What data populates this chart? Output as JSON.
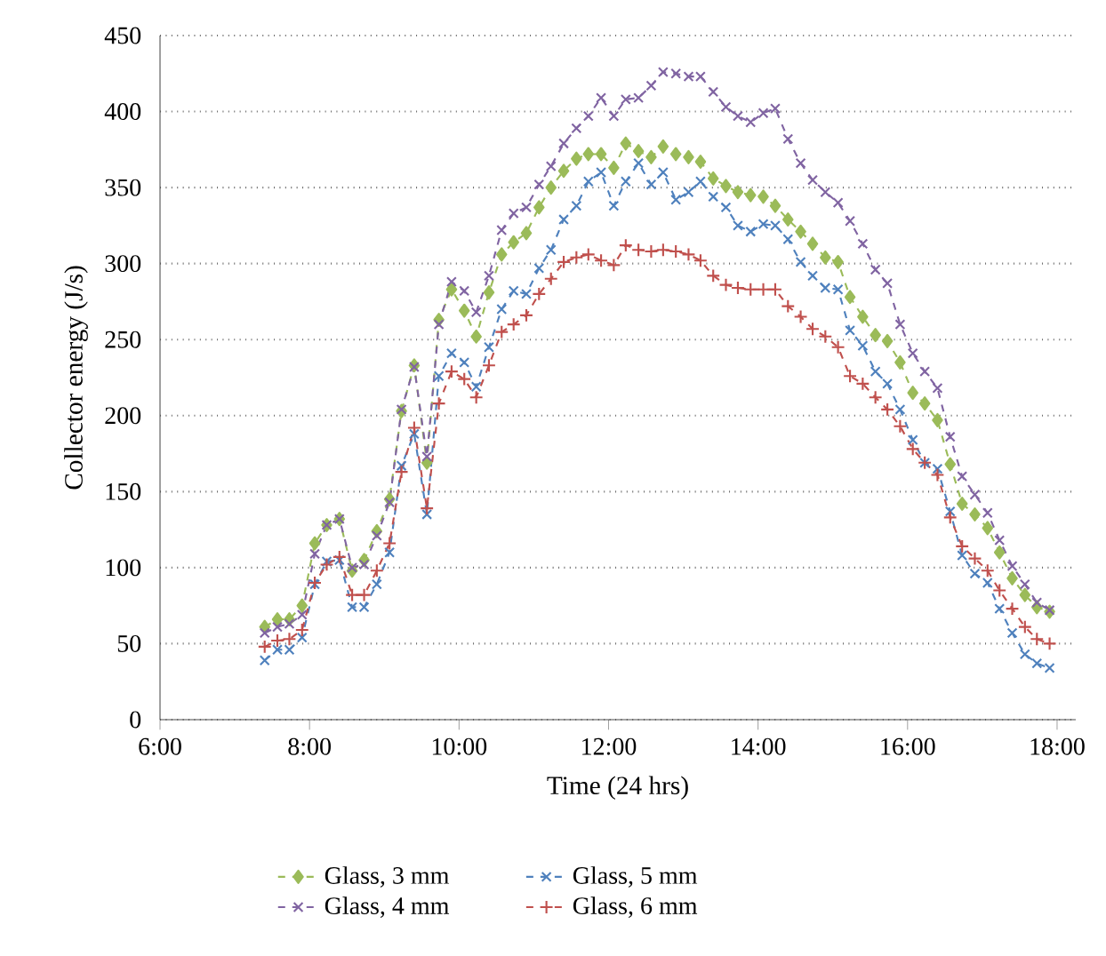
{
  "chart_data": {
    "type": "line",
    "xlabel": "Time (24 hrs)",
    "ylabel": "Collector energy (J/s)",
    "x": [
      7.4,
      7.57,
      7.73,
      7.9,
      8.07,
      8.23,
      8.4,
      8.57,
      8.73,
      8.9,
      9.07,
      9.23,
      9.4,
      9.57,
      9.73,
      9.9,
      10.07,
      10.23,
      10.4,
      10.57,
      10.73,
      10.9,
      11.07,
      11.23,
      11.4,
      11.57,
      11.73,
      11.9,
      12.07,
      12.23,
      12.4,
      12.57,
      12.73,
      12.9,
      13.07,
      13.23,
      13.4,
      13.57,
      13.73,
      13.9,
      14.07,
      14.23,
      14.4,
      14.57,
      14.73,
      14.9,
      15.07,
      15.23,
      15.4,
      15.57,
      15.73,
      15.9,
      16.07,
      16.23,
      16.4,
      16.57,
      16.73,
      16.9,
      17.07,
      17.23,
      17.4,
      17.57,
      17.73,
      17.9
    ],
    "series": [
      {
        "name": "Glass, 3 mm",
        "color": "#9bbb59",
        "marker": "diamond",
        "values": [
          61,
          66,
          66,
          75,
          116,
          128,
          132,
          98,
          105,
          124,
          145,
          203,
          233,
          169,
          263,
          283,
          269,
          252,
          281,
          306,
          314,
          320,
          337,
          350,
          361,
          369,
          372,
          372,
          363,
          379,
          374,
          370,
          377,
          372,
          370,
          367,
          356,
          351,
          347,
          345,
          344,
          338,
          329,
          321,
          313,
          304,
          301,
          278,
          265,
          253,
          249,
          235,
          215,
          208,
          197,
          168,
          142,
          135,
          126,
          110,
          93,
          82,
          74,
          71
        ]
      },
      {
        "name": "Glass, 4 mm",
        "color": "#8064a2",
        "marker": "cross",
        "values": [
          57,
          61,
          63,
          69,
          109,
          128,
          132,
          100,
          102,
          121,
          143,
          204,
          232,
          173,
          260,
          288,
          282,
          268,
          292,
          322,
          333,
          337,
          352,
          364,
          379,
          389,
          397,
          409,
          397,
          408,
          409,
          417,
          426,
          425,
          423,
          423,
          413,
          403,
          397,
          393,
          399,
          402,
          382,
          366,
          355,
          347,
          340,
          328,
          313,
          296,
          287,
          260,
          241,
          229,
          218,
          186,
          160,
          148,
          136,
          118,
          101,
          89,
          77,
          72
        ]
      },
      {
        "name": "Glass, 5 mm",
        "color": "#4f81bd",
        "marker": "cross",
        "values": [
          39,
          46,
          46,
          54,
          89,
          104,
          105,
          74,
          74,
          89,
          110,
          167,
          188,
          135,
          226,
          241,
          235,
          219,
          245,
          270,
          282,
          280,
          297,
          309,
          329,
          338,
          354,
          360,
          338,
          354,
          366,
          352,
          360,
          342,
          347,
          354,
          344,
          337,
          325,
          321,
          326,
          325,
          316,
          301,
          292,
          284,
          283,
          256,
          246,
          229,
          221,
          204,
          184,
          169,
          165,
          137,
          108,
          96,
          90,
          73,
          57,
          43,
          37,
          34
        ]
      },
      {
        "name": "Glass, 6 mm",
        "color": "#c0504d",
        "marker": "plus",
        "values": [
          48,
          52,
          53,
          59,
          90,
          102,
          107,
          82,
          82,
          98,
          116,
          163,
          192,
          139,
          208,
          229,
          224,
          212,
          233,
          255,
          260,
          266,
          280,
          290,
          301,
          304,
          306,
          302,
          299,
          312,
          309,
          308,
          309,
          308,
          306,
          302,
          292,
          286,
          284,
          283,
          283,
          283,
          272,
          265,
          257,
          252,
          245,
          226,
          221,
          212,
          204,
          193,
          178,
          169,
          161,
          133,
          114,
          106,
          98,
          85,
          73,
          61,
          53,
          50
        ]
      }
    ],
    "line_style": "dashed",
    "xlim": [
      6,
      18.25
    ],
    "ylim": [
      0,
      450
    ],
    "xticks": [
      {
        "value": 6,
        "label": "6:00"
      },
      {
        "value": 8,
        "label": "8:00"
      },
      {
        "value": 10,
        "label": "10:00"
      },
      {
        "value": 12,
        "label": "12:00"
      },
      {
        "value": 14,
        "label": "14:00"
      },
      {
        "value": 16,
        "label": "16:00"
      },
      {
        "value": 18,
        "label": "18:00"
      }
    ],
    "yticks": [
      0,
      50,
      100,
      150,
      200,
      250,
      300,
      350,
      400,
      450
    ],
    "grid": "y",
    "legend": "bottom"
  }
}
